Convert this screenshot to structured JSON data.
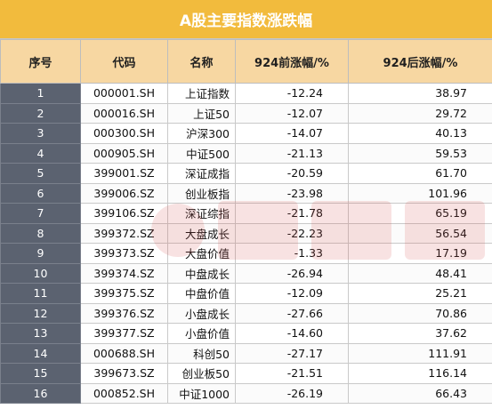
{
  "title": "A股主要指数涨跌幅",
  "headers": [
    "序号",
    "代码",
    "名称",
    "924前涨幅/%",
    "924后涨幅/%"
  ],
  "rows": [
    {
      "seq": "1",
      "code": "000001.SH",
      "name": "上证指数",
      "before": "-12.24",
      "after": "38.97"
    },
    {
      "seq": "2",
      "code": "000016.SH",
      "name": "上证50",
      "before": "-12.07",
      "after": "29.72"
    },
    {
      "seq": "3",
      "code": "000300.SH",
      "name": "沪深300",
      "before": "-14.07",
      "after": "40.13"
    },
    {
      "seq": "4",
      "code": "000905.SH",
      "name": "中证500",
      "before": "-21.13",
      "after": "59.53"
    },
    {
      "seq": "5",
      "code": "399001.SZ",
      "name": "深证成指",
      "before": "-20.59",
      "after": "61.70"
    },
    {
      "seq": "6",
      "code": "399006.SZ",
      "name": "创业板指",
      "before": "-23.98",
      "after": "101.96"
    },
    {
      "seq": "7",
      "code": "399106.SZ",
      "name": "深证综指",
      "before": "-21.78",
      "after": "65.19"
    },
    {
      "seq": "8",
      "code": "399372.SZ",
      "name": "大盘成长",
      "before": "-22.23",
      "after": "56.54"
    },
    {
      "seq": "9",
      "code": "399373.SZ",
      "name": "大盘价值",
      "before": "-1.33",
      "after": "17.19"
    },
    {
      "seq": "10",
      "code": "399374.SZ",
      "name": "中盘成长",
      "before": "-26.94",
      "after": "48.41"
    },
    {
      "seq": "11",
      "code": "399375.SZ",
      "name": "中盘价值",
      "before": "-12.09",
      "after": "25.21"
    },
    {
      "seq": "12",
      "code": "399376.SZ",
      "name": "小盘成长",
      "before": "-27.66",
      "after": "70.86"
    },
    {
      "seq": "13",
      "code": "399377.SZ",
      "name": "小盘价值",
      "before": "-14.60",
      "after": "37.62"
    },
    {
      "seq": "14",
      "code": "000688.SH",
      "name": "科创50",
      "before": "-27.17",
      "after": "111.91"
    },
    {
      "seq": "15",
      "code": "399673.SZ",
      "name": "创业板50",
      "before": "-21.51",
      "after": "116.14"
    },
    {
      "seq": "16",
      "code": "000852.SH",
      "name": "中证1000",
      "before": "-26.19",
      "after": "66.43"
    }
  ],
  "watermark": {
    "text": "财联社",
    "color": "#d9534f"
  },
  "colors": {
    "title_bg": "#f2bb3d",
    "header_bg": "#f7d7a2",
    "seq_bg": "#5b6270"
  }
}
